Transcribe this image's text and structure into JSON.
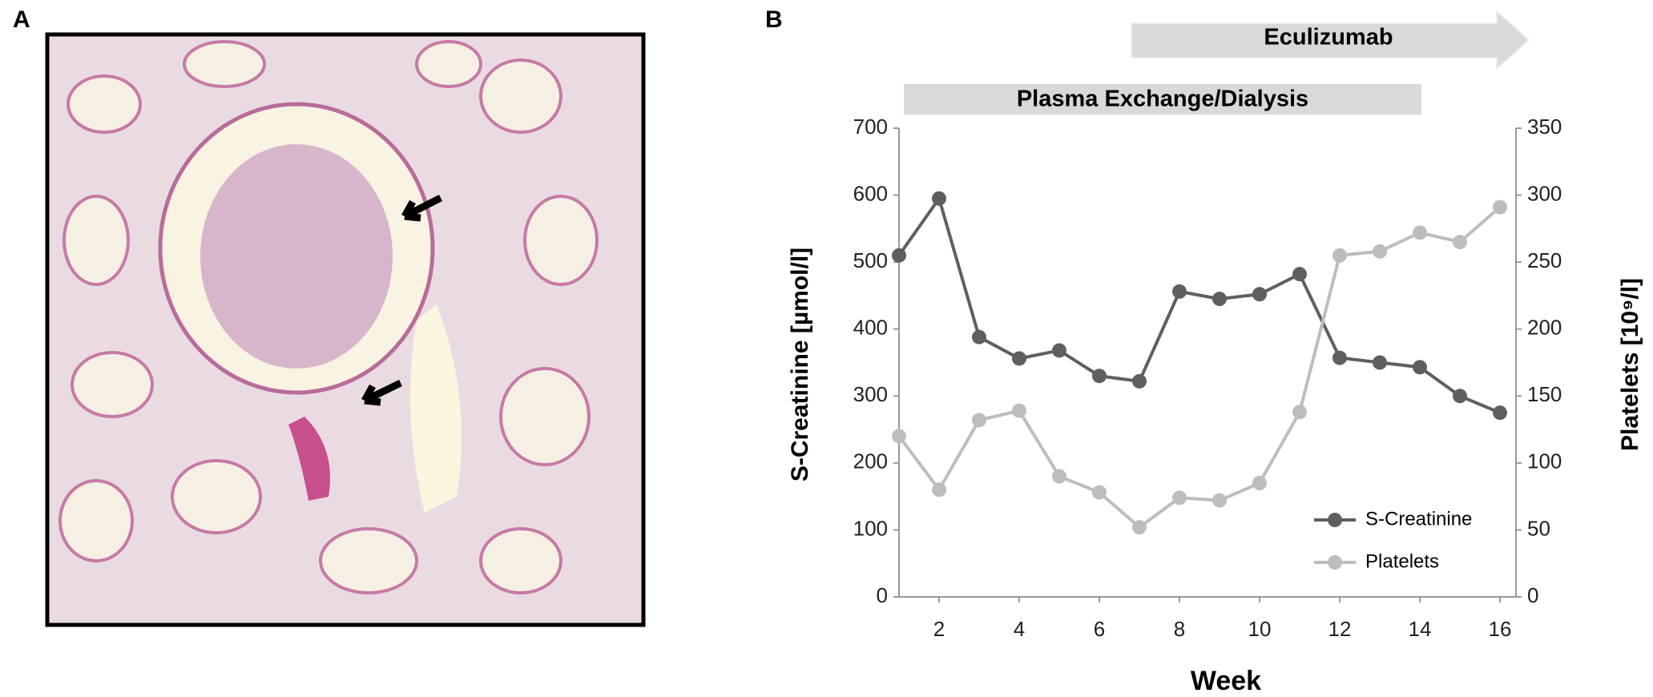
{
  "panel_labels": [
    "A",
    "B"
  ],
  "chart_data": {
    "type": "line",
    "annotations": [
      "Eculizumab",
      "Plasma Exchange/Dialysis"
    ],
    "xlabel": "Week",
    "ylabel": "S-Creatinine [µmol/l]",
    "y2label": "Platelets [10⁹/l]",
    "x": [
      1,
      2,
      3,
      4,
      5,
      6,
      7,
      8,
      9,
      10,
      11,
      12,
      13,
      14,
      15,
      16
    ],
    "xlim": [
      1,
      16.4
    ],
    "xticks": [
      2,
      4,
      6,
      8,
      10,
      12,
      14,
      16
    ],
    "ylim": [
      0,
      700
    ],
    "yticks": [
      0,
      100,
      200,
      300,
      400,
      500,
      600,
      700
    ],
    "y2lim": [
      0,
      350
    ],
    "y2ticks": [
      0,
      50,
      100,
      150,
      200,
      250,
      300,
      350
    ],
    "legend": "lower right",
    "grid": false,
    "series": [
      {
        "name": "S-Creatinine",
        "color": "#5f5f5f",
        "values": [
          510,
          595,
          388,
          356,
          368,
          330,
          322,
          456,
          445,
          452,
          482,
          357,
          350,
          343,
          300,
          275
        ]
      },
      {
        "name": "Platelets",
        "color": "#bdbdbd",
        "axis": "y2",
        "values": [
          120,
          80,
          132,
          139,
          90,
          78,
          52,
          74,
          72,
          85,
          138,
          255,
          258,
          272,
          265,
          291
        ]
      }
    ]
  }
}
